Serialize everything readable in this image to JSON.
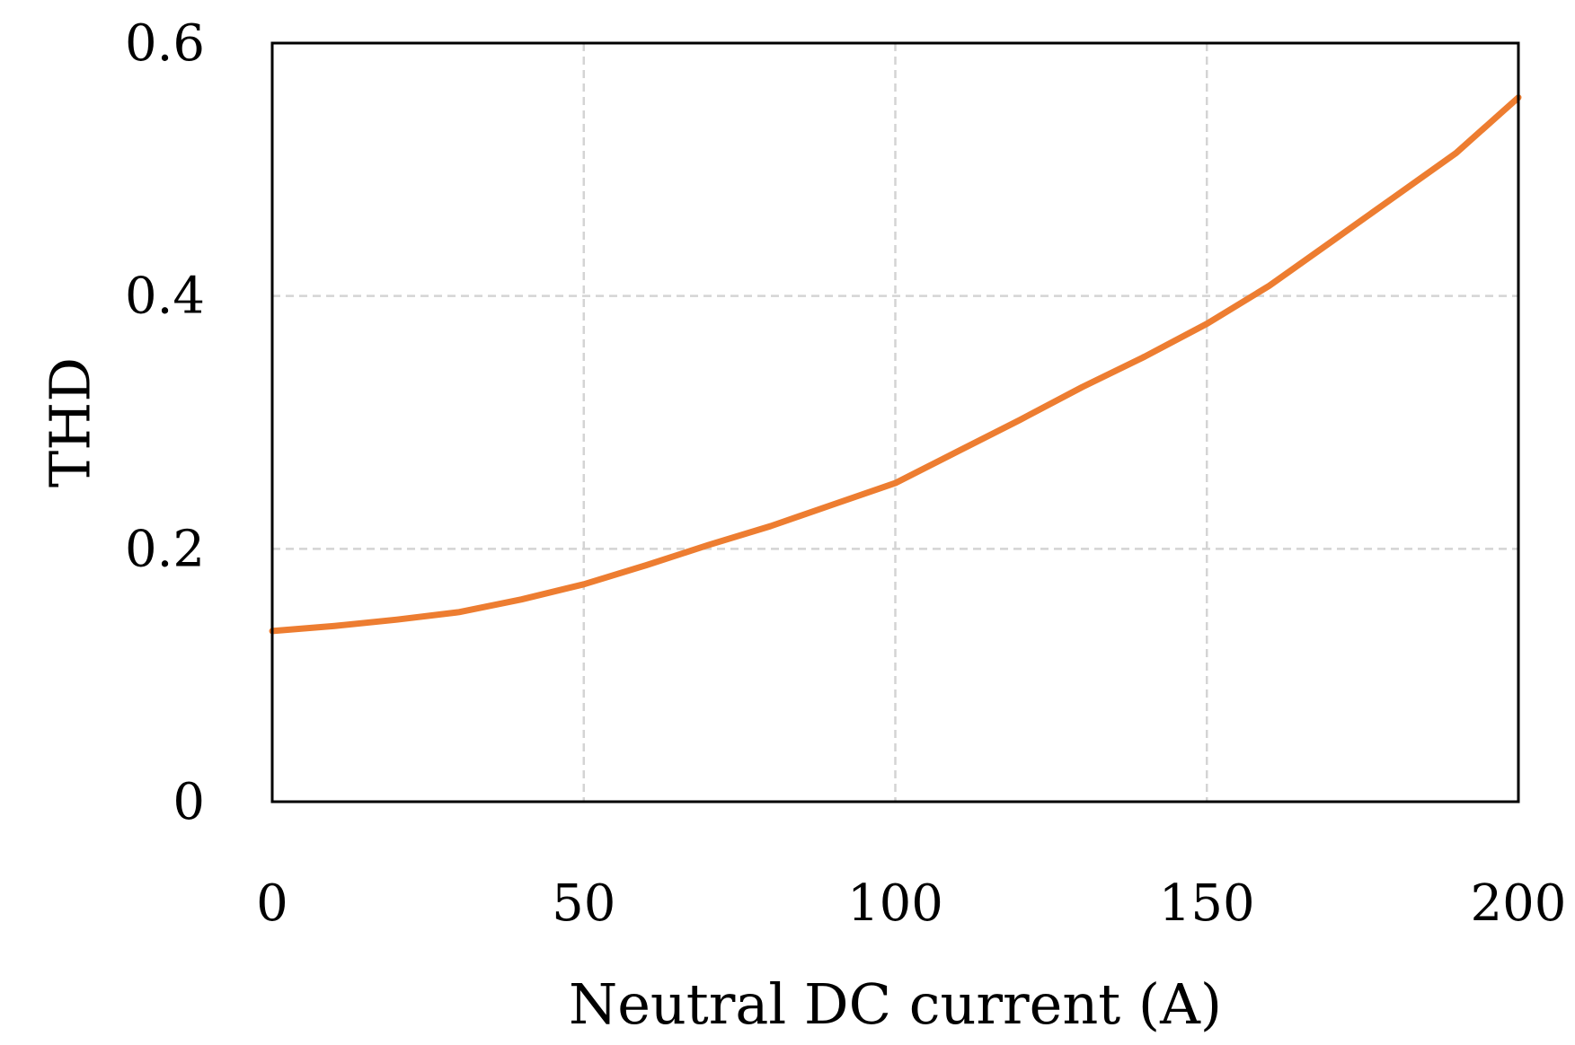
{
  "chart_data": {
    "type": "line",
    "title": "",
    "xlabel": "Neutral DC current (A)",
    "ylabel": "THD",
    "xlim": [
      0,
      200
    ],
    "ylim": [
      0,
      0.6
    ],
    "x_ticks": [
      0,
      50,
      100,
      150,
      200
    ],
    "x_tick_labels": [
      "0",
      "50",
      "100",
      "150",
      "200"
    ],
    "y_ticks": [
      0,
      0.2,
      0.4,
      0.6
    ],
    "y_tick_labels": [
      "0",
      "0.2",
      "0.4",
      "0.6"
    ],
    "grid": true,
    "legend": "none",
    "series": [
      {
        "color": "#ed7d31",
        "x": [
          0,
          10,
          20,
          30,
          40,
          50,
          60,
          70,
          80,
          90,
          100,
          110,
          120,
          130,
          140,
          150,
          160,
          170,
          180,
          190,
          200
        ],
        "y": [
          0.135,
          0.139,
          0.144,
          0.15,
          0.16,
          0.172,
          0.187,
          0.203,
          0.218,
          0.235,
          0.252,
          0.277,
          0.302,
          0.328,
          0.352,
          0.378,
          0.408,
          0.443,
          0.478,
          0.513,
          0.557
        ]
      }
    ]
  }
}
